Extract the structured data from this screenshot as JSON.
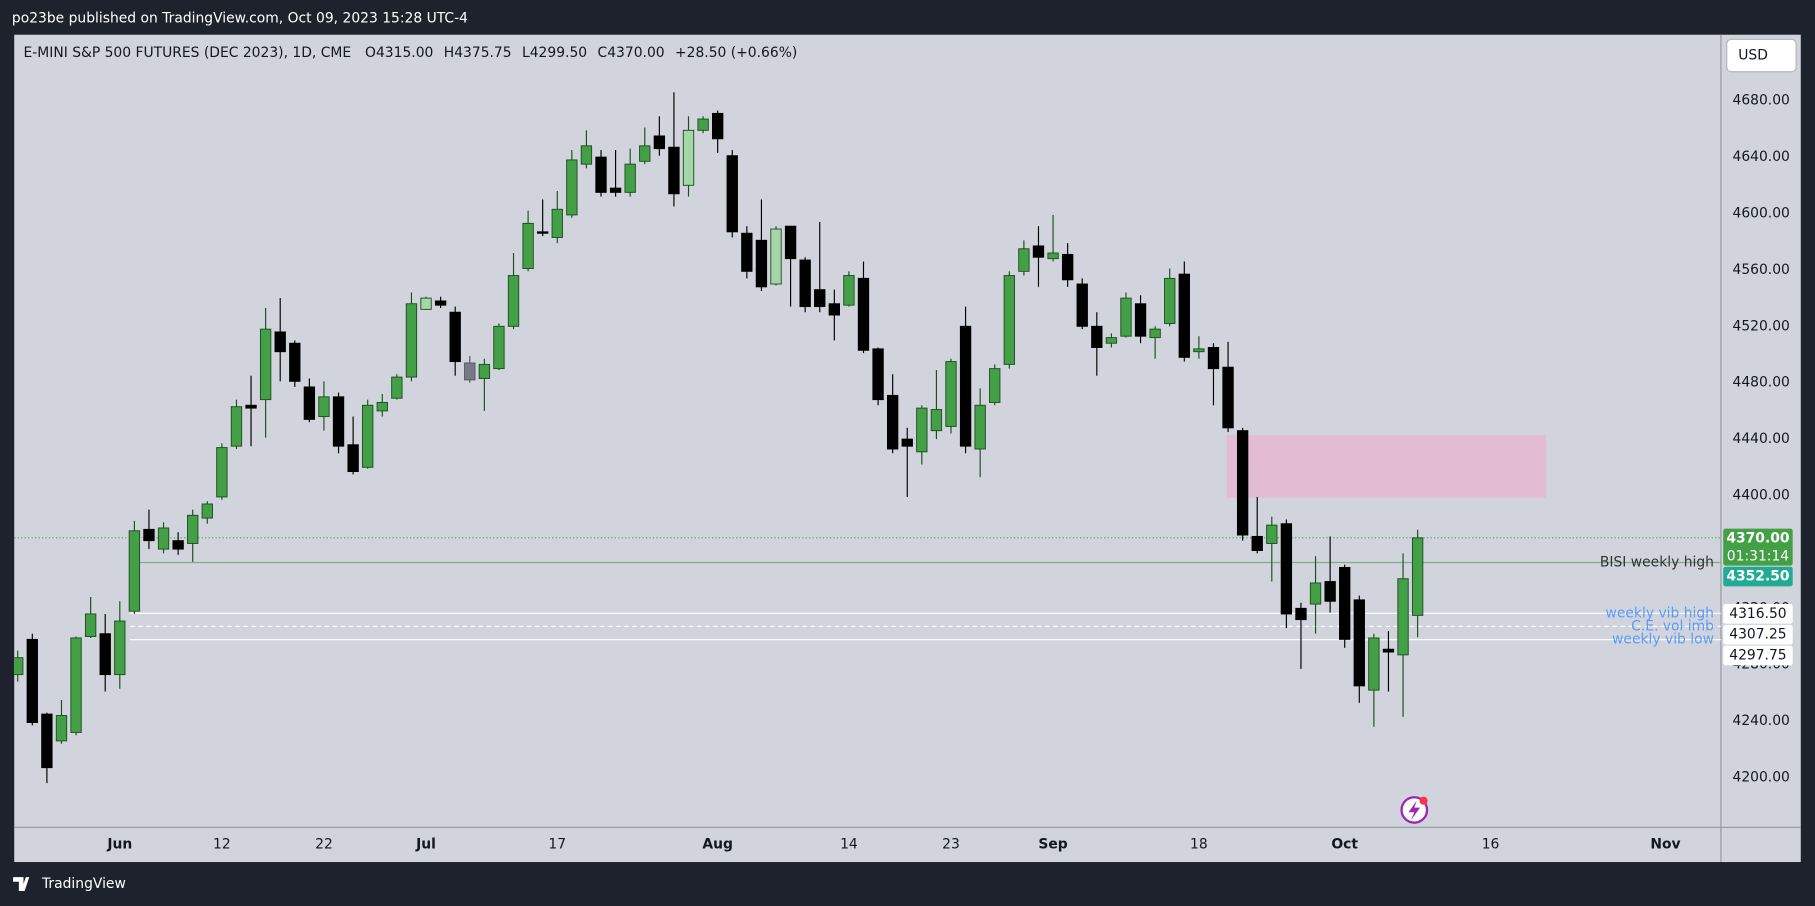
{
  "header": "po23be published on TradingView.com, Oct 09, 2023 15:28 UTC-4",
  "footer_logo": "TradingView",
  "currency": "USD",
  "chart_data": {
    "type": "candlestick",
    "legend": {
      "symbol": "E-MINI S&P 500 FUTURES (DEC 2023), 1D, CME",
      "open": "O4315.00",
      "high": "H4375.75",
      "low": "L4299.50",
      "close": "C4370.00",
      "change": "+28.50 (+0.66%)"
    },
    "open": [
      4273,
      4298,
      4245,
      4226,
      4232,
      4300,
      4302,
      4273,
      4318,
      4376,
      4362,
      4368,
      4366,
      4384,
      4399,
      4435,
      4464,
      4468,
      4516,
      4508,
      4477,
      4456,
      4470,
      4436,
      4420,
      4460,
      4469,
      4484,
      4532,
      4538,
      4530,
      4494,
      4483,
      4490,
      4520,
      4561,
      4587,
      4583,
      4599,
      4635,
      4640,
      4618,
      4615,
      4637,
      4655,
      4647,
      4620,
      4659,
      4671,
      4641,
      4586,
      4581,
      4550,
      4591,
      4567,
      4546,
      4536,
      4535,
      4554,
      4504,
      4471,
      4440,
      4431,
      4446,
      4449,
      4520,
      4433,
      4466,
      4493,
      4559,
      4577,
      4568,
      4571,
      4550,
      4520,
      4508,
      4513,
      4536,
      4512,
      4522,
      4557,
      4502,
      4505,
      4491,
      4446,
      4371,
      4366,
      4380,
      4320,
      4323,
      4339,
      4349,
      4326,
      4262,
      4291,
      4287,
      4315
    ],
    "high": [
      4290,
      4302,
      4246,
      4255,
      4300,
      4328,
      4316,
      4325,
      4382,
      4390,
      4381,
      4374,
      4390,
      4396,
      4437,
      4468,
      4485,
      4533,
      4540,
      4510,
      4483,
      4481,
      4473,
      4456,
      4468,
      4472,
      4486,
      4544,
      4541,
      4541,
      4534,
      4499,
      4497,
      4522,
      4572,
      4602,
      4610,
      4616,
      4645,
      4659,
      4645,
      4645,
      4646,
      4661,
      4669,
      4686,
      4669,
      4669,
      4673,
      4645,
      4591,
      4610,
      4591,
      4591,
      4569,
      4594,
      4546,
      4559,
      4566,
      4505,
      4486,
      4448,
      4464,
      4489,
      4497,
      4534,
      4476,
      4493,
      4559,
      4581,
      4591,
      4599,
      4579,
      4554,
      4530,
      4515,
      4544,
      4542,
      4520,
      4561,
      4566,
      4513,
      4508,
      4509,
      4448,
      4399,
      4385,
      4383,
      4324,
      4357,
      4371,
      4351,
      4329,
      4302,
      4304,
      4359,
      4375.75
    ],
    "low": [
      4268,
      4237,
      4196,
      4224,
      4230,
      4299,
      4261,
      4263,
      4316,
      4362,
      4359,
      4358,
      4353,
      4380,
      4397,
      4433,
      4435,
      4441,
      4481,
      4477,
      4452,
      4446,
      4430,
      4415,
      4419,
      4456,
      4468,
      4481,
      4532,
      4533,
      4485,
      4480,
      4460,
      4489,
      4518,
      4559,
      4584,
      4579,
      4597,
      4632,
      4612,
      4612,
      4612,
      4635,
      4641,
      4605,
      4612,
      4657,
      4643,
      4583,
      4554,
      4545,
      4549,
      4534,
      4530,
      4530,
      4510,
      4534,
      4501,
      4464,
      4430,
      4399,
      4422,
      4440,
      4444,
      4430,
      4413,
      4464,
      4490,
      4556,
      4548,
      4566,
      4548,
      4518,
      4485,
      4505,
      4512,
      4508,
      4497,
      4520,
      4495,
      4497,
      4464,
      4445,
      4368,
      4359,
      4339,
      4306,
      4277,
      4302,
      4317,
      4292,
      4253,
      4236,
      4261,
      4243,
      4299.5
    ],
    "close": [
      4285,
      4239,
      4207,
      4244,
      4299,
      4316,
      4273,
      4311,
      4375,
      4368,
      4377,
      4362,
      4386,
      4394,
      4434,
      4463,
      4462,
      4518,
      4502,
      4481,
      4454,
      4470,
      4435,
      4417,
      4464,
      4466,
      4484,
      4536,
      4540,
      4535,
      4495,
      4482,
      4493,
      4520,
      4556,
      4593,
      4586,
      4603,
      4638,
      4648,
      4615,
      4615,
      4635,
      4648,
      4646,
      4614,
      4659,
      4667,
      4653,
      4587,
      4559,
      4548,
      4589,
      4568,
      4534,
      4534,
      4528,
      4556,
      4503,
      4468,
      4433,
      4435,
      4462,
      4461,
      4495,
      4435,
      4464,
      4490,
      4556,
      4575,
      4569,
      4572,
      4553,
      4520,
      4505,
      4512,
      4540,
      4513,
      4518,
      4554,
      4498,
      4504,
      4490,
      4448,
      4372,
      4361,
      4379,
      4316,
      4312,
      4338,
      4325,
      4298,
      4265,
      4299,
      4289,
      4341,
      4370
    ],
    "up_color": "#43a047",
    "down_color": "#000000",
    "color_overrides": [
      {
        "index": 28,
        "color": "#a5d6a7"
      },
      {
        "index": 31,
        "color": "#787b86"
      },
      {
        "index": 46,
        "color": "#a5d6a7"
      },
      {
        "index": 52,
        "color": "#a5d6a7"
      }
    ],
    "xlim": [
      -0.24,
      116.8
    ],
    "xticks": [
      {
        "value": 7,
        "label": "Jun"
      },
      {
        "value": 14,
        "label": "12"
      },
      {
        "value": 21,
        "label": "22"
      },
      {
        "value": 28,
        "label": "Jul"
      },
      {
        "value": 37,
        "label": "17"
      },
      {
        "value": 48,
        "label": "Aug"
      },
      {
        "value": 57,
        "label": "14"
      },
      {
        "value": 64,
        "label": "23"
      },
      {
        "value": 71,
        "label": "Sep"
      },
      {
        "value": 81,
        "label": "18"
      },
      {
        "value": 91,
        "label": "Oct"
      },
      {
        "value": 101,
        "label": "16"
      },
      {
        "value": 113,
        "label": "Nov"
      }
    ],
    "ylim": [
      4164.7,
      4726.8
    ],
    "yticks": [
      {
        "value": 4200,
        "label": "4200.00"
      },
      {
        "value": 4240,
        "label": "4240.00"
      },
      {
        "value": 4280,
        "label": "4280.00"
      },
      {
        "value": 4320,
        "label": "4320.00"
      },
      {
        "value": 4360,
        "label": "4360.00"
      },
      {
        "value": 4400,
        "label": "4400.00"
      },
      {
        "value": 4440,
        "label": "4440.00"
      },
      {
        "value": 4480,
        "label": "4480.00"
      },
      {
        "value": 4520,
        "label": "4520.00"
      },
      {
        "value": 4560,
        "label": "4560.00"
      },
      {
        "value": 4600,
        "label": "4600.00"
      },
      {
        "value": 4640,
        "label": "4640.00"
      },
      {
        "value": 4680,
        "label": "4680.00"
      }
    ],
    "grid": false,
    "zone": {
      "from_x": 82.9,
      "to_x": 104.8,
      "top": 4443,
      "bottom": 4398.5,
      "color": "#e8b4cf"
    },
    "last_price": {
      "value": 4370,
      "value_label": "4370.00",
      "countdown": "01:31:14",
      "color": "#43a047"
    },
    "levels": [
      {
        "name": "BISI weekly high",
        "value": 4352.5,
        "value_label": "4352.50",
        "from_x": 8.2,
        "color": "#7fae8c",
        "style": "solid",
        "text_color": "#333333",
        "box_color": "#22ab94",
        "box_text": "#ffffff"
      },
      {
        "name": "weekly vib high",
        "value": 4316.5,
        "value_label": "4316.50",
        "from_x": 7.7,
        "color": "#ffffff",
        "style": "solid",
        "text_color": "#5b9cf6",
        "box_color": "#ffffff",
        "box_text": "#131722"
      },
      {
        "name": "C.E. vol imb",
        "value": 4307.25,
        "value_label": "4307.25",
        "from_x": 7.7,
        "color": "#ffffff",
        "style": "dashed",
        "text_color": "#5b9cf6",
        "box_color": "#ffffff",
        "box_text": "#131722"
      },
      {
        "name": "weekly vib low",
        "value": 4297.75,
        "value_label": "4297.75",
        "from_x": 7.7,
        "color": "#ffffff",
        "style": "solid",
        "text_color": "#5b9cf6",
        "box_color": "#ffffff",
        "box_text": "#131722"
      }
    ]
  }
}
